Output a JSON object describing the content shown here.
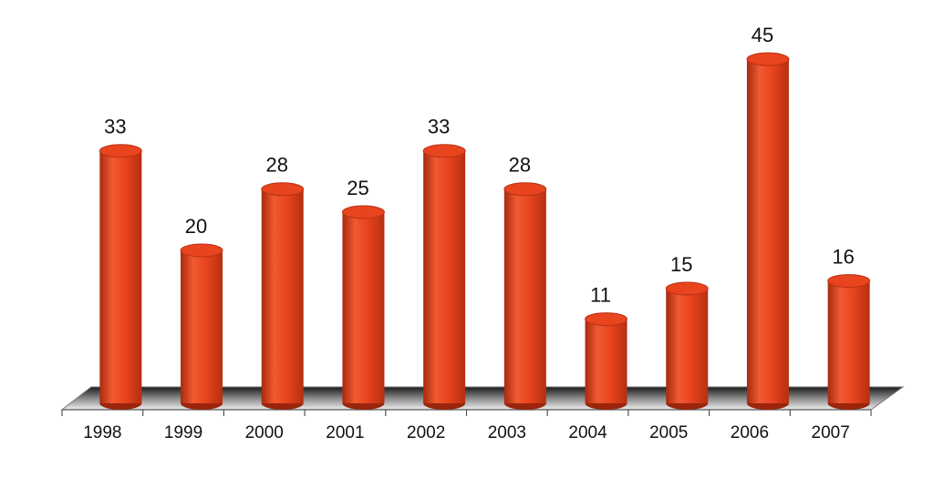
{
  "chart_data": {
    "type": "bar",
    "categories": [
      "1998",
      "1999",
      "2000",
      "2001",
      "2002",
      "2003",
      "2004",
      "2005",
      "2006",
      "2007"
    ],
    "values": [
      33,
      20,
      28,
      25,
      33,
      28,
      11,
      15,
      45,
      16
    ],
    "color": "#e8441e"
  }
}
